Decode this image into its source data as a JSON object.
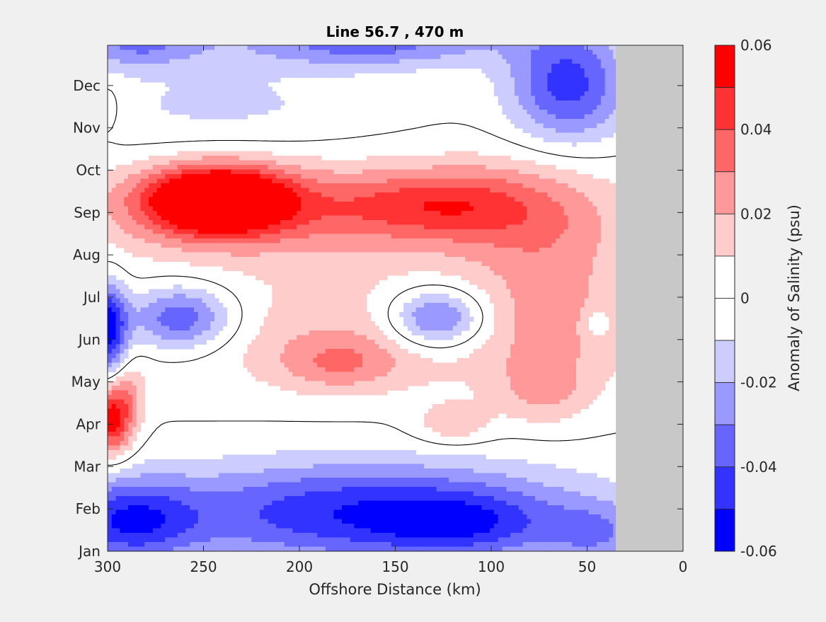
{
  "chart_data": {
    "type": "heatmap",
    "title": "Line 56.7 , 470 m",
    "xlabel": "Offshore Distance (km)",
    "ylabel": "",
    "xlim": [
      300,
      0
    ],
    "x_direction": "reversed",
    "x_ticks": [
      300,
      250,
      200,
      150,
      100,
      50,
      0
    ],
    "y_ticks": [
      "Jan",
      "Feb",
      "Mar",
      "Apr",
      "May",
      "Jun",
      "Jul",
      "Aug",
      "Sep",
      "Oct",
      "Nov",
      "Dec"
    ],
    "no_data_color": "#c8c8c8",
    "no_data_x_range": [
      35,
      0
    ],
    "contour_line": {
      "level": 0,
      "color": "#000000"
    },
    "colorbar": {
      "label": "Anomaly of Salinity (psu)",
      "range": [
        -0.06,
        0.06
      ],
      "step": 0.01,
      "tick_labels": [
        "0.06",
        "0.04",
        "0.02",
        "0",
        "-0.02",
        "-0.04",
        "-0.06"
      ],
      "bands": [
        {
          "from": 0.05,
          "to": 0.06,
          "color": "#ff0000"
        },
        {
          "from": 0.04,
          "to": 0.05,
          "color": "#ff3333"
        },
        {
          "from": 0.03,
          "to": 0.04,
          "color": "#ff6666"
        },
        {
          "from": 0.02,
          "to": 0.03,
          "color": "#ff9999"
        },
        {
          "from": 0.01,
          "to": 0.02,
          "color": "#ffcccc"
        },
        {
          "from": 0.0,
          "to": 0.01,
          "color": "#ffffff"
        },
        {
          "from": -0.01,
          "to": 0.0,
          "color": "#ffffff"
        },
        {
          "from": -0.02,
          "to": -0.01,
          "color": "#ccccff"
        },
        {
          "from": -0.03,
          "to": -0.02,
          "color": "#9999ff"
        },
        {
          "from": -0.04,
          "to": -0.03,
          "color": "#6666ff"
        },
        {
          "from": -0.05,
          "to": -0.04,
          "color": "#3333ff"
        },
        {
          "from": -0.06,
          "to": -0.05,
          "color": "#0000ff"
        }
      ]
    },
    "field": {
      "description_levels": "anomaly values in psu",
      "features": [
        {
          "x": 243,
          "m": 8.3,
          "sx": 26,
          "sy": 0.55,
          "a": 0.08
        },
        {
          "x": 195,
          "m": 8.0,
          "sx": 90,
          "sy": 0.9,
          "a": 0.028
        },
        {
          "x": 115,
          "m": 8.2,
          "sx": 28,
          "sy": 0.6,
          "a": 0.022
        },
        {
          "x": 155,
          "m": 8.2,
          "sx": 30,
          "sy": 0.5,
          "a": 0.012
        },
        {
          "x": 70,
          "m": 7.4,
          "sx": 30,
          "sy": 1.4,
          "a": 0.02
        },
        {
          "x": 150,
          "m": 5.1,
          "sx": 100,
          "sy": 0.95,
          "a": 0.018
        },
        {
          "x": 180,
          "m": 4.4,
          "sx": 22,
          "sy": 0.45,
          "a": 0.02
        },
        {
          "x": 120,
          "m": 3.0,
          "sx": 14,
          "sy": 0.35,
          "a": 0.018
        },
        {
          "x": 72,
          "m": 3.8,
          "sx": 18,
          "sy": 0.6,
          "a": 0.02
        },
        {
          "x": 60,
          "m": 5.5,
          "sx": 24,
          "sy": 0.8,
          "a": 0.005
        },
        {
          "x": 298,
          "m": 3.1,
          "sx": 8,
          "sy": 0.6,
          "a": 0.055
        },
        {
          "x": 290,
          "m": 3.8,
          "sx": 7,
          "sy": 0.5,
          "a": 0.015
        },
        {
          "x": 128,
          "m": 5.5,
          "sx": 18,
          "sy": 0.5,
          "a": -0.048
        },
        {
          "x": 45,
          "m": 5.4,
          "sx": 5,
          "sy": 0.3,
          "a": -0.015
        },
        {
          "x": 262,
          "m": 5.5,
          "sx": 20,
          "sy": 0.55,
          "a": -0.045
        },
        {
          "x": 300,
          "m": 5.2,
          "sx": 7,
          "sy": 0.8,
          "a": -0.06
        },
        {
          "x": 165,
          "m": 0.9,
          "sx": 80,
          "sy": 0.85,
          "a": -0.05
        },
        {
          "x": 115,
          "m": 0.6,
          "sx": 30,
          "sy": 0.5,
          "a": -0.02
        },
        {
          "x": 290,
          "m": 0.7,
          "sx": 25,
          "sy": 0.7,
          "a": -0.04
        },
        {
          "x": 45,
          "m": 0.4,
          "sx": 18,
          "sy": 0.5,
          "a": -0.02
        },
        {
          "x": 60,
          "m": 11.0,
          "sx": 22,
          "sy": 1.0,
          "a": -0.045
        },
        {
          "x": 165,
          "m": 12.0,
          "sx": 50,
          "sy": 0.4,
          "a": -0.035
        },
        {
          "x": 285,
          "m": 12.0,
          "sx": 25,
          "sy": 0.4,
          "a": -0.03
        },
        {
          "x": 240,
          "m": 10.5,
          "sx": 60,
          "sy": 0.8,
          "a": -0.012
        },
        {
          "x": 300,
          "m": 10.5,
          "sx": 5,
          "sy": 0.4,
          "a": 0.012
        }
      ]
    }
  }
}
